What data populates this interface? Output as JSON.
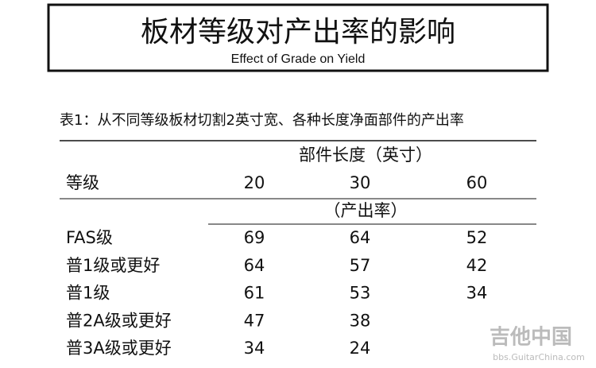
{
  "header": {
    "title": "板材等级对产出率的影响",
    "subtitle": "Effect of Grade on Yield"
  },
  "table": {
    "caption": "表1：从不同等级板材切割2英寸宽、各种长度净面部件的产出率",
    "group_header": "部件长度（英寸）",
    "row_header": "等级",
    "columns": [
      20,
      30,
      60
    ],
    "unit": "（产出率）",
    "rows": [
      {
        "grade": "FAS级",
        "values": [
          69,
          64,
          52
        ]
      },
      {
        "grade": "普1级或更好",
        "values": [
          64,
          57,
          42
        ]
      },
      {
        "grade": "普1级",
        "values": [
          61,
          53,
          34
        ]
      },
      {
        "grade": "普2A级或更好",
        "values": [
          47,
          38
        ]
      },
      {
        "grade": "普3A级或更好",
        "values": [
          34,
          24
        ]
      }
    ]
  },
  "watermark": {
    "logo": "吉他中国",
    "url": "bbs.GuitarChina.com"
  }
}
